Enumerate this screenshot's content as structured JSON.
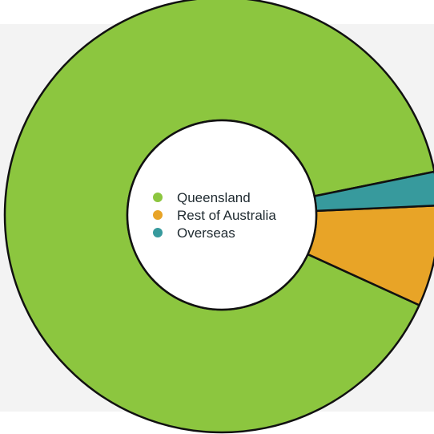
{
  "chart_data": {
    "type": "pie",
    "title": "",
    "categories": [
      "Queensland",
      "Rest of Australia",
      "Overseas"
    ],
    "values": [
      90,
      7.5,
      2.5
    ],
    "colors": [
      "#8cc63f",
      "#e8a427",
      "#379a9d"
    ],
    "donut": true,
    "start_direction": "right",
    "legend": {
      "position": "center",
      "items": [
        {
          "label": "Queensland",
          "color": "#8cc63f"
        },
        {
          "label": "Rest of Australia",
          "color": "#e8a427"
        },
        {
          "label": "Overseas",
          "color": "#379a9d"
        }
      ]
    },
    "background_band_color": "#f3f3f3",
    "outline_color": "#111111"
  }
}
